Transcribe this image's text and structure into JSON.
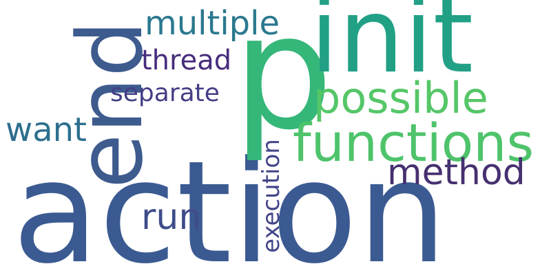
{
  "words": {
    "action": {
      "text": "action",
      "color": "#3b5a91"
    },
    "p": {
      "text": "p",
      "color": "#35b779"
    },
    "init": {
      "text": "init",
      "color": "#21a085"
    },
    "end": {
      "text": "end",
      "color": "#3e5b8e"
    },
    "functions": {
      "text": "functions",
      "color": "#4ec36b"
    },
    "possible": {
      "text": "possible",
      "color": "#55c667"
    },
    "multiple": {
      "text": "multiple",
      "color": "#2a788e"
    },
    "method": {
      "text": "method",
      "color": "#46306f"
    },
    "want": {
      "text": "want",
      "color": "#2d6f8e"
    },
    "run": {
      "text": "run",
      "color": "#3e4c8a"
    },
    "thread": {
      "text": "thread",
      "color": "#472d7b"
    },
    "separate": {
      "text": "separate",
      "color": "#433e85"
    },
    "execution": {
      "text": "execution",
      "color": "#414487"
    }
  }
}
